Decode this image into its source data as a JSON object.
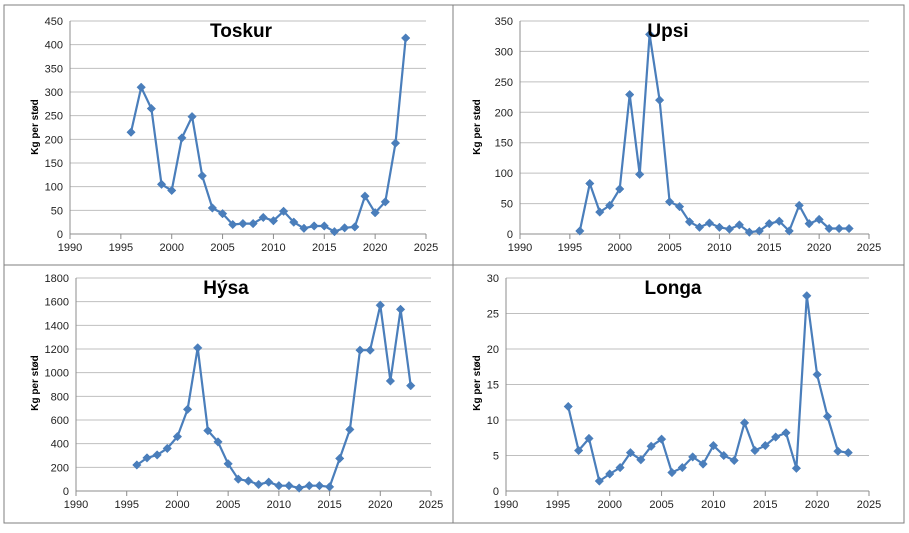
{
  "style": {
    "line_color": "#4a7ebb",
    "marker_color": "#4a7ebb",
    "frame_color": "#7f7f7f"
  },
  "chart_data": [
    {
      "type": "scatter",
      "title": "Toskur",
      "ylabel": "Kg per stød",
      "xlabel": "",
      "xlim": [
        1990,
        2025
      ],
      "xticks": [
        1990,
        1995,
        2000,
        2005,
        2010,
        2015,
        2020,
        2025
      ],
      "ylim": [
        0,
        450
      ],
      "yticks": [
        0,
        50,
        100,
        150,
        200,
        250,
        300,
        350,
        400,
        450
      ],
      "grid": "horizontal",
      "marker": "diamond",
      "connected": true,
      "series": [
        {
          "x": [
            1996,
            1997,
            1998,
            1999,
            2000,
            2001,
            2002,
            2003,
            2004,
            2005,
            2006,
            2007,
            2008,
            2009,
            2010,
            2011,
            2012,
            2013,
            2014,
            2015,
            2016,
            2017,
            2018,
            2019,
            2020,
            2021,
            2022,
            2023
          ],
          "y": [
            215,
            310,
            265,
            105,
            92,
            203,
            248,
            123,
            55,
            43,
            20,
            22,
            22,
            35,
            28,
            48,
            25,
            12,
            17,
            17,
            5,
            13,
            15,
            80,
            45,
            68,
            192,
            414
          ]
        }
      ]
    },
    {
      "type": "scatter",
      "title": "Upsi",
      "ylabel": "Kg per stød",
      "xlabel": "",
      "xlim": [
        1990,
        2025
      ],
      "xticks": [
        1990,
        1995,
        2000,
        2005,
        2010,
        2015,
        2020,
        2025
      ],
      "ylim": [
        0,
        350
      ],
      "yticks": [
        0,
        50,
        100,
        150,
        200,
        250,
        300,
        350
      ],
      "grid": "horizontal",
      "marker": "diamond",
      "connected": true,
      "series": [
        {
          "x": [
            1996,
            1997,
            1998,
            1999,
            2000,
            2001,
            2002,
            2003,
            2004,
            2005,
            2006,
            2007,
            2008,
            2009,
            2010,
            2011,
            2012,
            2013,
            2014,
            2015,
            2016,
            2017,
            2018,
            2019,
            2020,
            2021,
            2022,
            2023
          ],
          "y": [
            5,
            83,
            36,
            47,
            74,
            229,
            98,
            328,
            220,
            53,
            45,
            20,
            11,
            18,
            11,
            8,
            15,
            3,
            5,
            17,
            21,
            5,
            47,
            17,
            24,
            9,
            9,
            9
          ]
        }
      ]
    },
    {
      "type": "scatter",
      "title": "Hýsa",
      "ylabel": "Kg per stød",
      "xlabel": "",
      "xlim": [
        1990,
        2025
      ],
      "xticks": [
        1990,
        1995,
        2000,
        2005,
        2010,
        2015,
        2020,
        2025
      ],
      "ylim": [
        0,
        1800
      ],
      "yticks": [
        0,
        200,
        400,
        600,
        800,
        1000,
        1200,
        1400,
        1600,
        1800
      ],
      "grid": "horizontal",
      "marker": "diamond",
      "connected": true,
      "series": [
        {
          "x": [
            1996,
            1997,
            1998,
            1999,
            2000,
            2001,
            2002,
            2003,
            2004,
            2005,
            2006,
            2007,
            2008,
            2009,
            2010,
            2011,
            2012,
            2013,
            2014,
            2015,
            2016,
            2017,
            2018,
            2019,
            2020,
            2021,
            2022,
            2023
          ],
          "y": [
            220,
            280,
            305,
            360,
            460,
            690,
            1210,
            510,
            415,
            230,
            100,
            85,
            55,
            75,
            45,
            45,
            25,
            45,
            45,
            35,
            275,
            520,
            1190,
            1190,
            1570,
            930,
            1535,
            890
          ]
        }
      ]
    },
    {
      "type": "scatter",
      "title": "Longa",
      "ylabel": "Kg per stød",
      "xlabel": "",
      "xlim": [
        1990,
        2025
      ],
      "xticks": [
        1990,
        1995,
        2000,
        2005,
        2010,
        2015,
        2020,
        2025
      ],
      "ylim": [
        0,
        30
      ],
      "yticks": [
        0,
        5,
        10,
        15,
        20,
        25,
        30
      ],
      "grid": "horizontal",
      "marker": "diamond",
      "connected": true,
      "series": [
        {
          "x": [
            1996,
            1997,
            1998,
            1999,
            2000,
            2001,
            2002,
            2003,
            2004,
            2005,
            2006,
            2007,
            2008,
            2009,
            2010,
            2011,
            2012,
            2013,
            2014,
            2015,
            2016,
            2017,
            2018,
            2019,
            2020,
            2021,
            2022,
            2023
          ],
          "y": [
            11.9,
            5.7,
            7.4,
            1.4,
            2.4,
            3.3,
            5.4,
            4.4,
            6.3,
            7.3,
            2.6,
            3.3,
            4.8,
            3.8,
            6.4,
            5.0,
            4.3,
            9.6,
            5.7,
            6.4,
            7.6,
            8.2,
            3.2,
            27.5,
            16.4,
            10.5,
            5.6,
            5.4
          ]
        }
      ]
    }
  ]
}
